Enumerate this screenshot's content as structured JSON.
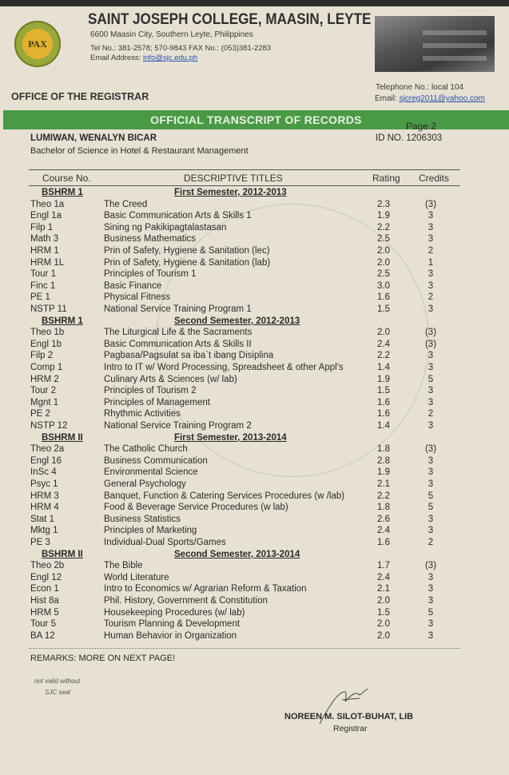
{
  "header": {
    "seal_text": "PAX",
    "school_name": "SAINT JOSEPH COLLEGE, MAASIN, LEYTE",
    "address": "6600 Maasin City, Southern Leyte, Philippines",
    "phones": "Tel No.: 381-2578; 570-9843 FAX No.: (053)381-2283",
    "email_label": "Email Address: ",
    "email": "info@sjc.edu.ph",
    "office": "OFFICE OF THE REGISTRAR",
    "telephone": "Telephone No.: local 104",
    "registrar_email_label": "Email: ",
    "registrar_email": "sjcreg2011@yahoo.com"
  },
  "band": {
    "title": "OFFICIAL TRANSCRIPT OF RECORDS",
    "color": "#4a9a45"
  },
  "student": {
    "page": "Page 2",
    "name": "LUMIWAN, WENALYN BICAR",
    "id": "ID NO.  1206303",
    "program": "Bachelor of Science in Hotel & Restaurant Management"
  },
  "table": {
    "headers": {
      "course_no": "Course No.",
      "title": "DESCRIPTIVE TITLES",
      "rating": "Rating",
      "credits": "Credits"
    },
    "semesters": [
      {
        "level": "BSHRM 1",
        "term": "First Semester, 2012-2013",
        "courses": [
          {
            "no": "Theo 1a",
            "title": "The Creed",
            "rating": "2.3",
            "credits": "(3)"
          },
          {
            "no": "Engl 1a",
            "title": "Basic Communication Arts & Skills 1",
            "rating": "1.9",
            "credits": "3"
          },
          {
            "no": "Filp 1",
            "title": "Sining ng Pakikipagtalastasan",
            "rating": "2.2",
            "credits": "3"
          },
          {
            "no": "Math 3",
            "title": "Business Mathematics",
            "rating": "2.5",
            "credits": "3"
          },
          {
            "no": "HRM 1",
            "title": "Prin of Safety, Hygiene & Sanitation (lec)",
            "rating": "2.0",
            "credits": "2"
          },
          {
            "no": "HRM 1L",
            "title": "Prin of Safety, Hygiene & Sanitation (lab)",
            "rating": "2.0",
            "credits": "1"
          },
          {
            "no": "Tour 1",
            "title": "Principles of Tourism 1",
            "rating": "2.5",
            "credits": "3"
          },
          {
            "no": "Finc 1",
            "title": "Basic Finance",
            "rating": "3.0",
            "credits": "3"
          },
          {
            "no": "PE 1",
            "title": "Physical Fitness",
            "rating": "1.6",
            "credits": "2"
          },
          {
            "no": "NSTP 11",
            "title": "National Service Training Program 1",
            "rating": "1.5",
            "credits": "3"
          }
        ]
      },
      {
        "level": "BSHRM 1",
        "term": "Second Semester, 2012-2013",
        "courses": [
          {
            "no": "Theo 1b",
            "title": "The Liturgical Life & the Sacraments",
            "rating": "2.0",
            "credits": "(3)"
          },
          {
            "no": "Engl 1b",
            "title": "Basic Communication Arts & Skills II",
            "rating": "2.4",
            "credits": "(3)"
          },
          {
            "no": "Filp 2",
            "title": "Pagbasa/Pagsulat sa iba`t ibang Disiplina",
            "rating": "2.2",
            "credits": "3"
          },
          {
            "no": "Comp 1",
            "title": "Intro to IT w/ Word Processing, Spreadsheet & other Appl's",
            "rating": "1.4",
            "credits": "3"
          },
          {
            "no": "HRM 2",
            "title": "Culinary Arts & Sciences (w/ lab)",
            "rating": "1.9",
            "credits": "5"
          },
          {
            "no": "Tour 2",
            "title": "Principles of Tourism 2",
            "rating": "1.5",
            "credits": "3"
          },
          {
            "no": "Mgnt 1",
            "title": "Principles of Management",
            "rating": "1.6",
            "credits": "3"
          },
          {
            "no": "PE 2",
            "title": "Rhythmic Activities",
            "rating": "1.6",
            "credits": "2"
          },
          {
            "no": "NSTP 12",
            "title": "National Service Training Program 2",
            "rating": "1.4",
            "credits": "3"
          }
        ]
      },
      {
        "level": "BSHRM II",
        "term": "First Semester, 2013-2014",
        "courses": [
          {
            "no": "Theo 2a",
            "title": "The Catholic Church",
            "rating": "1.8",
            "credits": "(3)"
          },
          {
            "no": "Engl 16",
            "title": "Business Communication",
            "rating": "2.8",
            "credits": "3"
          },
          {
            "no": "InSc 4",
            "title": "Environmental Science",
            "rating": "1.9",
            "credits": "3"
          },
          {
            "no": "Psyc 1",
            "title": "General Psychology",
            "rating": "2.1",
            "credits": "3"
          },
          {
            "no": "HRM 3",
            "title": "Banquet, Function & Catering Services Procedures (w /lab)",
            "rating": "2.2",
            "credits": "5"
          },
          {
            "no": "HRM 4",
            "title": "Food & Beverage Service Procedures (w lab)",
            "rating": "1.8",
            "credits": "5"
          },
          {
            "no": "Stat 1",
            "title": "Business Statistics",
            "rating": "2.6",
            "credits": "3"
          },
          {
            "no": "Mktg 1",
            "title": "Principles of Marketing",
            "rating": "2.4",
            "credits": "3"
          },
          {
            "no": "PE 3",
            "title": "Individual-Dual Sports/Games",
            "rating": "1.6",
            "credits": "2"
          }
        ]
      },
      {
        "level": "BSHRM II",
        "term": "Second Semester, 2013-2014",
        "courses": [
          {
            "no": "Theo 2b",
            "title": "The Bible",
            "rating": "1.7",
            "credits": "(3)"
          },
          {
            "no": "Engl 12",
            "title": "World Literature",
            "rating": "2.4",
            "credits": "3"
          },
          {
            "no": "Econ 1",
            "title": "Intro to Economics w/ Agrarian Reform & Taxation",
            "rating": "2.1",
            "credits": "3"
          },
          {
            "no": "Hist 8a",
            "title": "Phil. History, Government & Constitution",
            "rating": "2.0",
            "credits": "3"
          },
          {
            "no": "HRM 5",
            "title": "Housekeeping Procedures (w/ lab)",
            "rating": "1.5",
            "credits": "5"
          },
          {
            "no": "Tour 5",
            "title": "Tourism Planning & Development",
            "rating": "2.0",
            "credits": "3"
          },
          {
            "no": "BA 12",
            "title": "Human Behavior in Organization",
            "rating": "2.0",
            "credits": "3"
          }
        ]
      }
    ]
  },
  "watermark_text": "SAINT JOSEPH COLLEGE, MAASIN, LEYTE  Founded 1928",
  "footer": {
    "remarks": "REMARKS:  MORE ON NEXT PAGE!",
    "note_line1": "not valid without",
    "note_line2": "SJC seal",
    "signatory": "NOREEN M. SILOT-BUHAT, LIB",
    "signatory_title": "Registrar"
  }
}
